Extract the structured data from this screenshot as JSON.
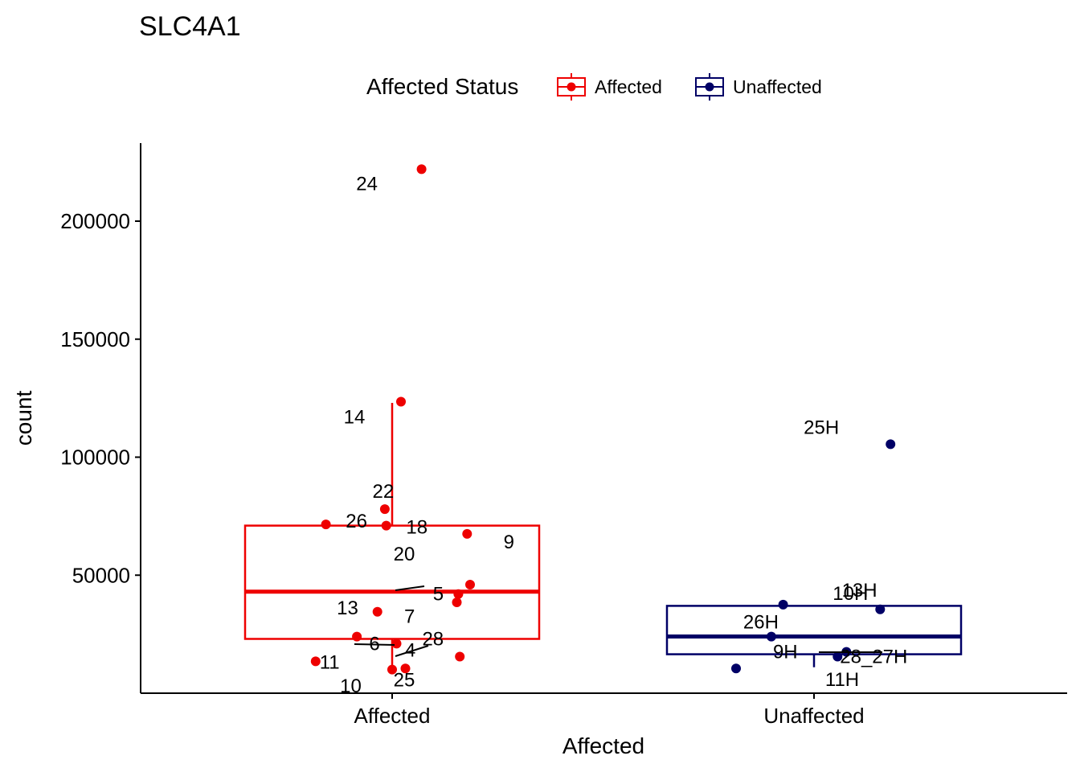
{
  "chart_data": {
    "type": "boxplot",
    "title": "SLC4A1",
    "xlabel": "Affected",
    "ylabel": "count",
    "ylim": [
      0,
      230000
    ],
    "y_ticks": [
      50000,
      100000,
      150000,
      200000
    ],
    "y_tick_labels": [
      "50000",
      "100000",
      "150000",
      "200000"
    ],
    "categories": [
      "Affected",
      "Unaffected"
    ],
    "grid": false,
    "legend": {
      "title": "Affected Status",
      "position": "top",
      "entries": [
        {
          "label": "Affected",
          "color": "#EE0000"
        },
        {
          "label": "Unaffected",
          "color": "#000066"
        }
      ]
    },
    "series": [
      {
        "category": "Affected",
        "color": "#EE0000",
        "box": {
          "q1": 23000,
          "median": 43000,
          "q3": 71000,
          "whisker_low": 10000,
          "whisker_high": 123000
        },
        "points": [
          {
            "label": "24",
            "x_jitter": 0.2,
            "y": 222000
          },
          {
            "label": "14",
            "x_jitter": 0.06,
            "y": 123500
          },
          {
            "label": "22",
            "x_jitter": -0.05,
            "y": 78000
          },
          {
            "label": "26",
            "x_jitter": -0.45,
            "y": 71500
          },
          {
            "label": "18",
            "x_jitter": -0.04,
            "y": 71000
          },
          {
            "label": "9",
            "x_jitter": 0.51,
            "y": 67500
          },
          {
            "label": "20",
            "x_jitter": 0.53,
            "y": 46000
          },
          {
            "label": "5",
            "x_jitter": 0.45,
            "y": 42000
          },
          {
            "label": "13",
            "x_jitter": 0.44,
            "y": 38500
          },
          {
            "label": "7",
            "x_jitter": -0.1,
            "y": 34500
          },
          {
            "label": "6",
            "x_jitter": -0.24,
            "y": 24000
          },
          {
            "label": "4",
            "x_jitter": 0.03,
            "y": 21000
          },
          {
            "label": "11",
            "x_jitter": 0.46,
            "y": 15500
          },
          {
            "label": "28",
            "x_jitter": -0.52,
            "y": 13500
          },
          {
            "label": "10",
            "x_jitter": 0.09,
            "y": 10500
          },
          {
            "label": "25",
            "x_jitter": 0.0,
            "y": 10000
          }
        ]
      },
      {
        "category": "Unaffected",
        "color": "#000066",
        "box": {
          "q1": 16500,
          "median": 24000,
          "q3": 37000,
          "whisker_low": 11000,
          "whisker_high": 37000
        },
        "points": [
          {
            "label": "25H",
            "x_jitter": 0.52,
            "y": 105500
          },
          {
            "label": "13H",
            "x_jitter": -0.21,
            "y": 37500
          },
          {
            "label": "10H",
            "x_jitter": 0.45,
            "y": 35500
          },
          {
            "label": "26H",
            "x_jitter": -0.29,
            "y": 24000
          },
          {
            "label": "9H",
            "x_jitter": 0.22,
            "y": 17500
          },
          {
            "label": "28_27H",
            "x_jitter": 0.16,
            "y": 15500
          },
          {
            "label": "11H",
            "x_jitter": -0.53,
            "y": 10500
          }
        ]
      }
    ]
  }
}
